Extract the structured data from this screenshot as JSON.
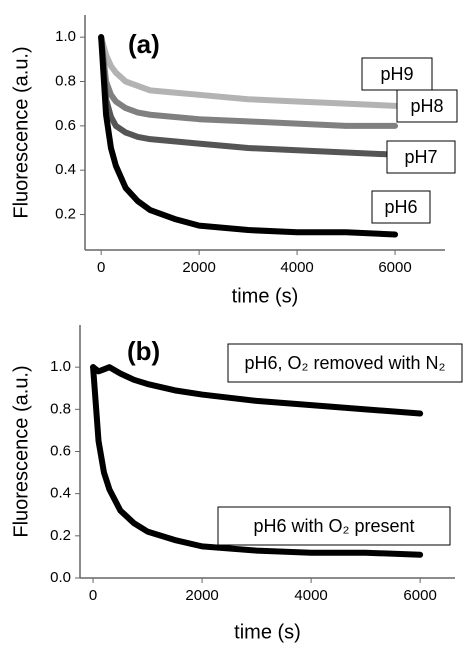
{
  "chart_data": [
    {
      "type": "line",
      "annotation": "(a)",
      "x_label": "time (s)",
      "y_label": "Fluorescence (a.u.)",
      "x": [
        0,
        100,
        200,
        300,
        500,
        750,
        1000,
        1500,
        2000,
        3000,
        4000,
        5000,
        6000
      ],
      "series": [
        {
          "name": "pH9",
          "color": "#b3b3b3",
          "values": [
            1.0,
            0.92,
            0.87,
            0.84,
            0.8,
            0.78,
            0.76,
            0.75,
            0.74,
            0.72,
            0.71,
            0.7,
            0.69
          ]
        },
        {
          "name": "pH8",
          "color": "#808080",
          "values": [
            1.0,
            0.8,
            0.74,
            0.71,
            0.68,
            0.66,
            0.65,
            0.64,
            0.63,
            0.62,
            0.61,
            0.6,
            0.6
          ]
        },
        {
          "name": "pH7",
          "color": "#555555",
          "values": [
            1.0,
            0.72,
            0.64,
            0.6,
            0.57,
            0.55,
            0.54,
            0.53,
            0.52,
            0.5,
            0.49,
            0.48,
            0.47
          ]
        },
        {
          "name": "pH6",
          "color": "#000000",
          "values": [
            1.0,
            0.65,
            0.5,
            0.42,
            0.32,
            0.26,
            0.22,
            0.18,
            0.15,
            0.13,
            0.12,
            0.12,
            0.11
          ]
        }
      ],
      "xlim": [
        -330,
        7020
      ],
      "ylim": [
        0.04,
        1.1
      ],
      "xticks": [
        0,
        2000,
        4000,
        6000
      ],
      "yticks": [
        0.2,
        0.4,
        0.6,
        0.8,
        {
          "value": 1,
          "label": "1.0"
        }
      ]
    },
    {
      "type": "line",
      "annotation": "(b)",
      "x_label": "time (s)",
      "y_label": "Fluorescence (a.u.)",
      "x": [
        0,
        100,
        200,
        300,
        500,
        750,
        1000,
        1500,
        2000,
        3000,
        4000,
        5000,
        6000
      ],
      "series": [
        {
          "name": "pH6, O₂ removed with N₂",
          "color": "#000000",
          "values": [
            1.0,
            0.98,
            0.99,
            1.0,
            0.97,
            0.94,
            0.92,
            0.89,
            0.87,
            0.84,
            0.82,
            0.8,
            0.78
          ]
        },
        {
          "name": "pH6 with O₂ present",
          "color": "#000000",
          "values": [
            1.0,
            0.65,
            0.5,
            0.42,
            0.32,
            0.26,
            0.22,
            0.18,
            0.15,
            0.13,
            0.12,
            0.12,
            0.11
          ]
        }
      ],
      "xlim": [
        -240,
        6640
      ],
      "ylim": [
        0,
        1.2
      ],
      "xticks": [
        0,
        2000,
        4000,
        6000
      ],
      "yticks": [
        {
          "value": 0,
          "label": "0.0"
        },
        0.2,
        0.4,
        0.6,
        0.8,
        {
          "value": 1,
          "label": "1.0"
        }
      ]
    }
  ]
}
